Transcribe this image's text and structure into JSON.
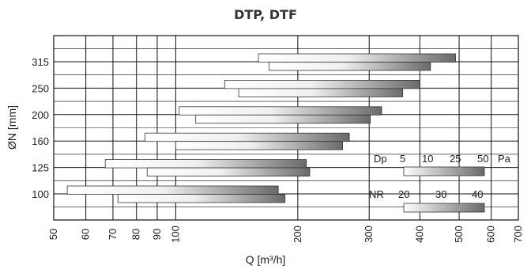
{
  "chart_data": {
    "type": "range-bar",
    "title": "DTP, DTF",
    "xlabel": "Q [m³/h]",
    "ylabel": "ØN [mm]",
    "x_scale": "log",
    "xlim": [
      50,
      700
    ],
    "x_ticks": [
      50,
      60,
      70,
      80,
      90,
      100,
      200,
      300,
      400,
      500,
      600,
      700
    ],
    "y_categories": [
      "315",
      "250",
      "200",
      "160",
      "125",
      "100"
    ],
    "bars": [
      {
        "dn": "315",
        "ranges": [
          [
            160,
            490
          ],
          [
            170,
            425
          ]
        ]
      },
      {
        "dn": "250",
        "ranges": [
          [
            132,
            400
          ],
          [
            143,
            363
          ]
        ]
      },
      {
        "dn": "200",
        "ranges": [
          [
            102,
            322
          ],
          [
            112,
            302
          ]
        ]
      },
      {
        "dn": "160",
        "ranges": [
          [
            84,
            268
          ],
          [
            100,
            258
          ]
        ]
      },
      {
        "dn": "125",
        "ranges": [
          [
            67,
            210
          ],
          [
            85,
            214
          ]
        ]
      },
      {
        "dn": "100",
        "ranges": [
          [
            54,
            179
          ],
          [
            72,
            186
          ]
        ]
      }
    ],
    "legend": {
      "dp": {
        "label": "Dp",
        "values": [
          "5",
          "10",
          "25",
          "50"
        ],
        "unit": "Pa"
      },
      "nr": {
        "label": "NR",
        "values": [
          "20",
          "30",
          "40"
        ]
      }
    },
    "grid": true
  },
  "colors": {
    "bar_light": "#ffffff",
    "bar_dark": "#6a6a6a",
    "grid": "#111111"
  }
}
